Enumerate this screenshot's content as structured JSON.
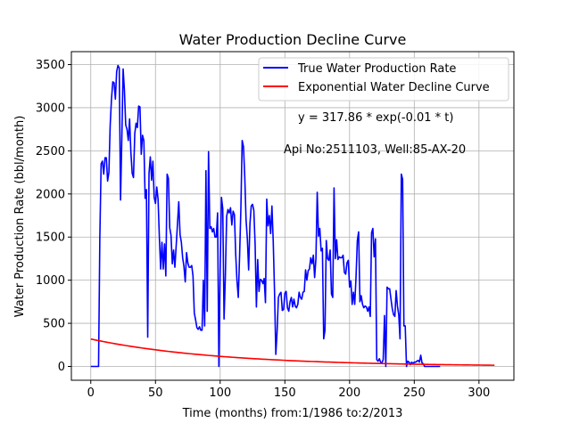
{
  "chart_data": {
    "type": "line",
    "title": "Water Production Decline Curve",
    "xlabel": "Time (months) from:1/1986 to:2/2013",
    "ylabel": "Water Production Rate (bbl/month)",
    "xlim": [
      -15,
      327
    ],
    "ylim": [
      -160,
      3650
    ],
    "xticks": [
      0,
      50,
      100,
      150,
      200,
      250,
      300
    ],
    "yticks": [
      0,
      500,
      1000,
      1500,
      2000,
      2500,
      3000,
      3500
    ],
    "grid": true,
    "legend_position": "top-right",
    "annotations": [
      {
        "text": "y = 317.86 * exp(-0.01 * t)"
      },
      {
        "text": "Api No:2511103, Well:85-AX-20"
      }
    ],
    "series": [
      {
        "name": "True Water Production Rate",
        "color": "#0000ff",
        "points": [
          [
            0,
            0
          ],
          [
            5,
            0
          ],
          [
            6,
            0
          ],
          [
            7,
            1500
          ],
          [
            8,
            2350
          ],
          [
            9,
            2380
          ],
          [
            10,
            2230
          ],
          [
            11,
            2420
          ],
          [
            12,
            2420
          ],
          [
            13,
            2150
          ],
          [
            14,
            2250
          ],
          [
            15,
            2800
          ],
          [
            16,
            3100
          ],
          [
            17,
            3300
          ],
          [
            18,
            3290
          ],
          [
            19,
            3100
          ],
          [
            20,
            3420
          ],
          [
            21,
            3490
          ],
          [
            22,
            3460
          ],
          [
            23,
            1930
          ],
          [
            24,
            2650
          ],
          [
            25,
            3450
          ],
          [
            26,
            3200
          ],
          [
            27,
            2800
          ],
          [
            28,
            2750
          ],
          [
            29,
            2620
          ],
          [
            30,
            2870
          ],
          [
            31,
            2480
          ],
          [
            32,
            2240
          ],
          [
            33,
            2190
          ],
          [
            34,
            2700
          ],
          [
            35,
            2820
          ],
          [
            36,
            2770
          ],
          [
            37,
            3020
          ],
          [
            38,
            3010
          ],
          [
            39,
            2460
          ],
          [
            40,
            2680
          ],
          [
            41,
            2620
          ],
          [
            42,
            1950
          ],
          [
            43,
            2050
          ],
          [
            44,
            340
          ],
          [
            45,
            2240
          ],
          [
            46,
            2430
          ],
          [
            47,
            2160
          ],
          [
            48,
            2380
          ],
          [
            49,
            1960
          ],
          [
            50,
            1890
          ],
          [
            51,
            2080
          ],
          [
            52,
            1940
          ],
          [
            53,
            1500
          ],
          [
            54,
            1130
          ],
          [
            55,
            1440
          ],
          [
            56,
            1130
          ],
          [
            57,
            1420
          ],
          [
            58,
            1050
          ],
          [
            59,
            2230
          ],
          [
            60,
            2180
          ],
          [
            61,
            1610
          ],
          [
            62,
            1520
          ],
          [
            63,
            1190
          ],
          [
            64,
            1350
          ],
          [
            65,
            1150
          ],
          [
            66,
            1400
          ],
          [
            67,
            1650
          ],
          [
            68,
            1910
          ],
          [
            69,
            1530
          ],
          [
            70,
            1440
          ],
          [
            71,
            1260
          ],
          [
            72,
            1160
          ],
          [
            73,
            980
          ],
          [
            74,
            1320
          ],
          [
            75,
            1200
          ],
          [
            76,
            1150
          ],
          [
            77,
            1150
          ],
          [
            78,
            1170
          ],
          [
            79,
            1050
          ],
          [
            80,
            620
          ],
          [
            81,
            540
          ],
          [
            82,
            450
          ],
          [
            83,
            430
          ],
          [
            84,
            460
          ],
          [
            85,
            420
          ],
          [
            86,
            420
          ],
          [
            87,
            1000
          ],
          [
            88,
            470
          ],
          [
            89,
            2270
          ],
          [
            90,
            640
          ],
          [
            91,
            2490
          ],
          [
            92,
            1600
          ],
          [
            93,
            1620
          ],
          [
            94,
            1560
          ],
          [
            95,
            1600
          ],
          [
            96,
            1500
          ],
          [
            97,
            1500
          ],
          [
            98,
            1780
          ],
          [
            99,
            0
          ],
          [
            100,
            1130
          ],
          [
            101,
            1960
          ],
          [
            102,
            1830
          ],
          [
            103,
            550
          ],
          [
            104,
            1040
          ],
          [
            105,
            1740
          ],
          [
            106,
            1820
          ],
          [
            107,
            1780
          ],
          [
            108,
            1840
          ],
          [
            109,
            1640
          ],
          [
            110,
            1800
          ],
          [
            111,
            1760
          ],
          [
            112,
            1300
          ],
          [
            113,
            990
          ],
          [
            114,
            800
          ],
          [
            115,
            1280
          ],
          [
            116,
            1830
          ],
          [
            117,
            2620
          ],
          [
            118,
            2550
          ],
          [
            119,
            2200
          ],
          [
            120,
            1700
          ],
          [
            121,
            1480
          ],
          [
            122,
            1120
          ],
          [
            123,
            1650
          ],
          [
            124,
            1860
          ],
          [
            125,
            1880
          ],
          [
            126,
            1810
          ],
          [
            127,
            1420
          ],
          [
            128,
            690
          ],
          [
            129,
            1240
          ],
          [
            130,
            870
          ],
          [
            131,
            1010
          ],
          [
            132,
            1000
          ],
          [
            133,
            960
          ],
          [
            134,
            1020
          ],
          [
            135,
            740
          ],
          [
            136,
            1940
          ],
          [
            137,
            1630
          ],
          [
            138,
            1750
          ],
          [
            139,
            1540
          ],
          [
            140,
            1860
          ],
          [
            141,
            1450
          ],
          [
            142,
            870
          ],
          [
            143,
            140
          ],
          [
            144,
            410
          ],
          [
            145,
            800
          ],
          [
            146,
            840
          ],
          [
            147,
            860
          ],
          [
            148,
            650
          ],
          [
            149,
            660
          ],
          [
            150,
            850
          ],
          [
            151,
            870
          ],
          [
            152,
            680
          ],
          [
            153,
            640
          ],
          [
            154,
            750
          ],
          [
            155,
            800
          ],
          [
            156,
            690
          ],
          [
            157,
            780
          ],
          [
            158,
            700
          ],
          [
            159,
            680
          ],
          [
            160,
            720
          ],
          [
            161,
            860
          ],
          [
            162,
            800
          ],
          [
            163,
            780
          ],
          [
            164,
            860
          ],
          [
            165,
            870
          ],
          [
            166,
            1120
          ],
          [
            167,
            1000
          ],
          [
            168,
            1110
          ],
          [
            169,
            1130
          ],
          [
            170,
            1260
          ],
          [
            171,
            1190
          ],
          [
            172,
            1290
          ],
          [
            173,
            1030
          ],
          [
            174,
            1250
          ],
          [
            175,
            2020
          ],
          [
            176,
            1510
          ],
          [
            177,
            1600
          ],
          [
            178,
            1340
          ],
          [
            179,
            1370
          ],
          [
            180,
            320
          ],
          [
            181,
            420
          ],
          [
            182,
            1460
          ],
          [
            183,
            1250
          ],
          [
            184,
            1230
          ],
          [
            185,
            1350
          ],
          [
            186,
            840
          ],
          [
            187,
            800
          ],
          [
            188,
            2070
          ],
          [
            189,
            1250
          ],
          [
            190,
            1470
          ],
          [
            191,
            1240
          ],
          [
            192,
            1270
          ],
          [
            193,
            1260
          ],
          [
            194,
            1260
          ],
          [
            195,
            1290
          ],
          [
            196,
            1090
          ],
          [
            197,
            1070
          ],
          [
            198,
            1200
          ],
          [
            199,
            1230
          ],
          [
            200,
            920
          ],
          [
            201,
            990
          ],
          [
            202,
            720
          ],
          [
            203,
            860
          ],
          [
            204,
            720
          ],
          [
            205,
            1040
          ],
          [
            206,
            1460
          ],
          [
            207,
            1560
          ],
          [
            208,
            750
          ],
          [
            209,
            820
          ],
          [
            210,
            720
          ],
          [
            211,
            680
          ],
          [
            212,
            700
          ],
          [
            213,
            690
          ],
          [
            214,
            640
          ],
          [
            215,
            690
          ],
          [
            216,
            580
          ],
          [
            217,
            1550
          ],
          [
            218,
            1600
          ],
          [
            219,
            1270
          ],
          [
            220,
            1480
          ],
          [
            221,
            80
          ],
          [
            222,
            60
          ],
          [
            223,
            90
          ],
          [
            224,
            50
          ],
          [
            225,
            40
          ],
          [
            226,
            80
          ],
          [
            227,
            590
          ],
          [
            228,
            0
          ],
          [
            229,
            920
          ],
          [
            230,
            900
          ],
          [
            231,
            900
          ],
          [
            232,
            780
          ],
          [
            233,
            670
          ],
          [
            234,
            600
          ],
          [
            235,
            580
          ],
          [
            236,
            880
          ],
          [
            237,
            700
          ],
          [
            238,
            600
          ],
          [
            239,
            320
          ],
          [
            240,
            2230
          ],
          [
            241,
            2170
          ],
          [
            242,
            470
          ],
          [
            243,
            470
          ],
          [
            244,
            0
          ],
          [
            245,
            60
          ],
          [
            246,
            50
          ],
          [
            247,
            20
          ],
          [
            248,
            50
          ],
          [
            249,
            30
          ],
          [
            250,
            50
          ],
          [
            251,
            50
          ],
          [
            252,
            60
          ],
          [
            253,
            70
          ],
          [
            254,
            50
          ],
          [
            255,
            130
          ],
          [
            256,
            40
          ],
          [
            257,
            30
          ],
          [
            258,
            0
          ],
          [
            260,
            0
          ],
          [
            262,
            0
          ],
          [
            265,
            0
          ],
          [
            268,
            0
          ],
          [
            270,
            0
          ]
        ]
      },
      {
        "name": "Exponential Water Decline Curve",
        "color": "#ff0000",
        "equation": {
          "a": 317.86,
          "b": -0.01
        },
        "x_range": [
          0,
          312
        ]
      }
    ]
  }
}
